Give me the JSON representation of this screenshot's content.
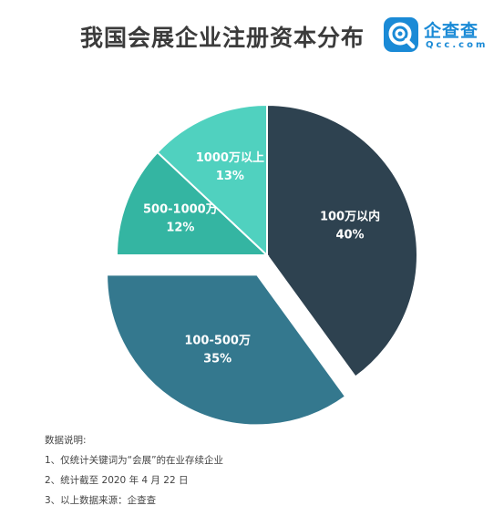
{
  "title": "我国会展企业注册资本分布",
  "logo": {
    "name_cn": "企查查",
    "name_en": "Qcc.com"
  },
  "colors": {
    "title": "#3b3b3b",
    "brand": "#1a8ad6",
    "slice_label": "#ffffff"
  },
  "chart_data": {
    "type": "pie",
    "title": "我国会展企业注册资本分布",
    "start_angle_deg": 0,
    "direction": "clockwise",
    "exploded_slice": "100-500万",
    "slices": [
      {
        "label": "100万以内",
        "value": 40,
        "pct_label": "40%",
        "color": "#2e4250"
      },
      {
        "label": "100-500万",
        "value": 35,
        "pct_label": "35%",
        "color": "#34788e"
      },
      {
        "label": "500-1000万",
        "value": 12,
        "pct_label": "12%",
        "color": "#34b5a2"
      },
      {
        "label": "1000万以上",
        "value": 13,
        "pct_label": "13%",
        "color": "#50d1bf"
      }
    ]
  },
  "notes": {
    "heading": "数据说明:",
    "items": [
      "1、仅统计关键词为“会展”的在业存续企业",
      "2、统计截至 2020 年 4 月 22 日",
      "3、以上数据来源：企查查"
    ]
  }
}
